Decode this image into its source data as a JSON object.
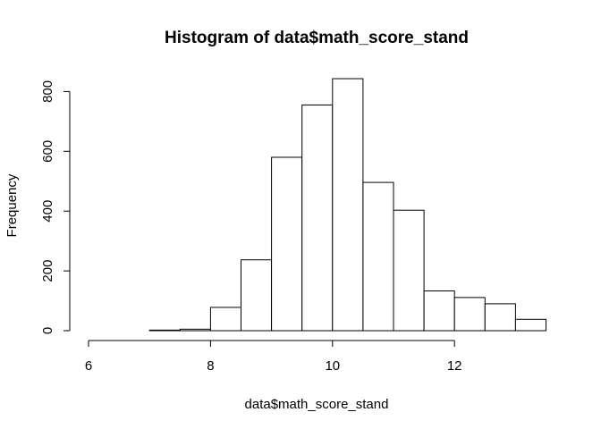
{
  "chart_data": {
    "type": "bar",
    "title": "Histogram of data$math_score_stand",
    "xlabel": "data$math_score_stand",
    "ylabel": "Frequency",
    "xlim": [
      6,
      13.5
    ],
    "ylim": [
      0,
      840
    ],
    "x_ticks": [
      "6",
      "8",
      "10",
      "12"
    ],
    "y_ticks": [
      "0",
      "200",
      "400",
      "600",
      "800"
    ],
    "bin_width": 0.5,
    "bins": [
      {
        "start": 6.0,
        "end": 6.5,
        "count": 0
      },
      {
        "start": 6.5,
        "end": 7.0,
        "count": 0
      },
      {
        "start": 7.0,
        "end": 7.5,
        "count": 2
      },
      {
        "start": 7.5,
        "end": 8.0,
        "count": 5
      },
      {
        "start": 8.0,
        "end": 8.5,
        "count": 78
      },
      {
        "start": 8.5,
        "end": 9.0,
        "count": 237
      },
      {
        "start": 9.0,
        "end": 9.5,
        "count": 580
      },
      {
        "start": 9.5,
        "end": 10.0,
        "count": 755
      },
      {
        "start": 10.0,
        "end": 10.5,
        "count": 843
      },
      {
        "start": 10.5,
        "end": 11.0,
        "count": 496
      },
      {
        "start": 11.0,
        "end": 11.5,
        "count": 403
      },
      {
        "start": 11.5,
        "end": 12.0,
        "count": 133
      },
      {
        "start": 12.0,
        "end": 12.5,
        "count": 111
      },
      {
        "start": 12.5,
        "end": 13.0,
        "count": 90
      },
      {
        "start": 13.0,
        "end": 13.5,
        "count": 38
      }
    ],
    "grid": false,
    "legend": "none",
    "colors": {
      "bar_fill": "#ffffff",
      "bar_stroke": "#000000"
    }
  }
}
